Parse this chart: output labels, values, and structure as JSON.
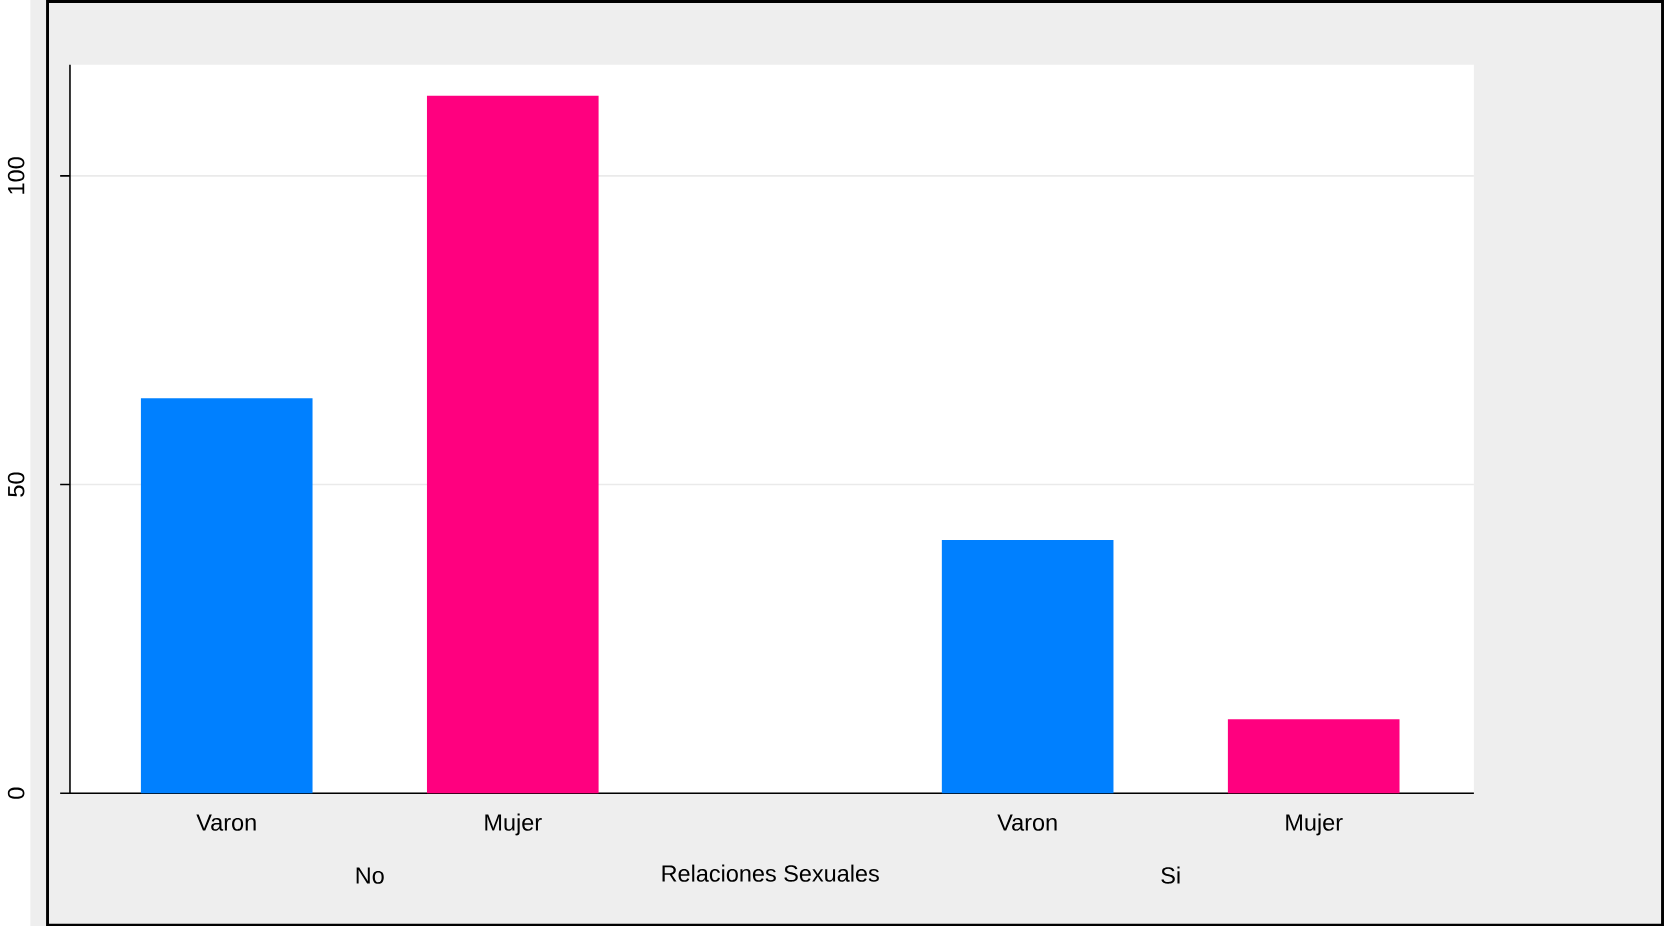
{
  "chart_data": {
    "type": "bar",
    "xlabel": "Relaciones Sexuales",
    "categories": [
      "Varon",
      "Mujer",
      "Varon",
      "Mujer"
    ],
    "values": [
      64,
      113,
      41,
      12
    ],
    "colors": [
      "#0080ff",
      "#ff007f",
      "#0080ff",
      "#ff007f"
    ],
    "annotations": [
      "No",
      "Si"
    ],
    "ylim": [
      0,
      118
    ],
    "yticks": [
      0,
      50,
      100
    ],
    "grid": "y"
  }
}
